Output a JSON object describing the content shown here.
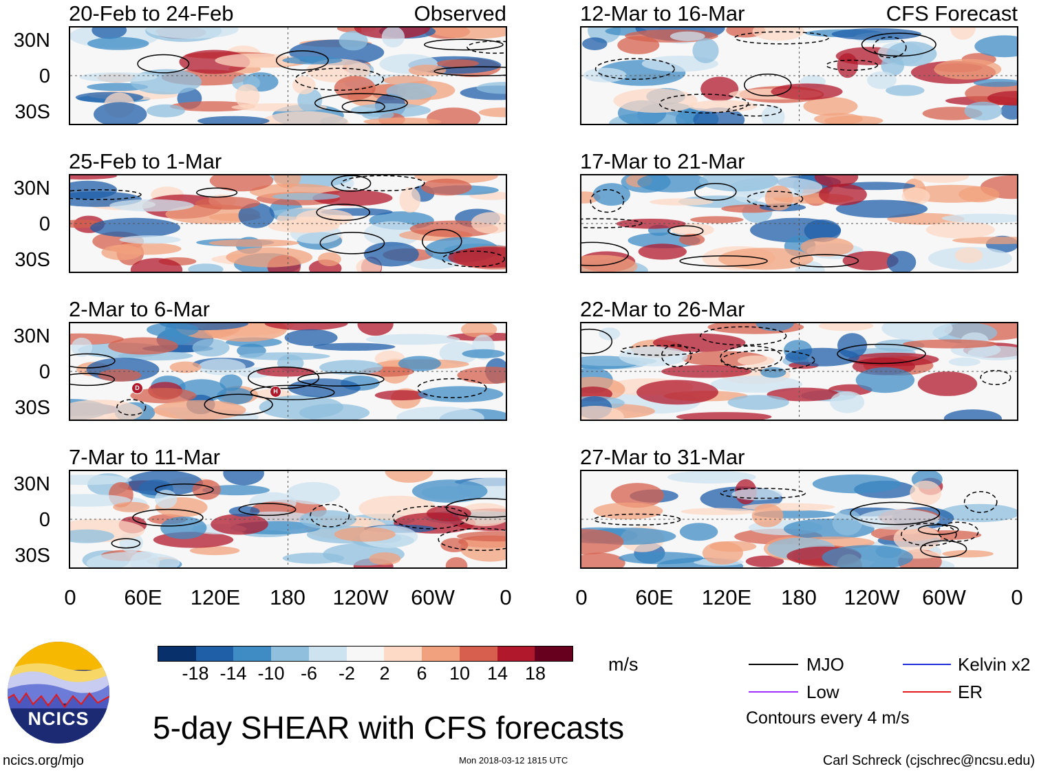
{
  "chart_data": {
    "type": "heatmap",
    "title": "5-day SHEAR with CFS forecasts",
    "observed_label": "Observed",
    "forecast_label": "CFS Forecast",
    "observed_panels": [
      {
        "period": "20-Feb to 24-Feb"
      },
      {
        "period": "25-Feb to 1-Mar"
      },
      {
        "period": "2-Mar to 6-Mar"
      },
      {
        "period": "7-Mar to 11-Mar"
      }
    ],
    "forecast_panels": [
      {
        "period": "12-Mar to 16-Mar"
      },
      {
        "period": "17-Mar to 21-Mar"
      },
      {
        "period": "22-Mar to 26-Mar"
      },
      {
        "period": "27-Mar to 31-Mar"
      }
    ],
    "y_ticks": [
      "30N",
      "0",
      "30S"
    ],
    "x_ticks": [
      "0",
      "60E",
      "120E",
      "180",
      "120W",
      "60W",
      "0"
    ],
    "colorbar": {
      "units": "m/s",
      "labels": [
        "-18",
        "-14",
        "-10",
        "-6",
        "-2",
        "2",
        "6",
        "10",
        "14",
        "18"
      ],
      "colors": [
        "#08306b",
        "#1f5fa8",
        "#3f8cc5",
        "#8fbfdd",
        "#cde3f0",
        "#f7f7f7",
        "#fddac6",
        "#f2a17e",
        "#d6604d",
        "#b2182b",
        "#67001f"
      ]
    },
    "legend": [
      {
        "label": "MJO",
        "color": "#000000"
      },
      {
        "label": "Kelvin x2",
        "color": "#1f2bd6"
      },
      {
        "label": "Low",
        "color": "#9b30ff"
      },
      {
        "label": "ER",
        "color": "#e31a1c"
      }
    ],
    "contour_note": "Contours every 4 m/s"
  },
  "markers": [
    {
      "letter": "D"
    },
    {
      "letter": "H"
    }
  ],
  "footer": {
    "left": "ncics.org/mjo",
    "center": "Mon 2018-03-12 1815 UTC",
    "right": "Carl Schreck (cjschrec@ncsu.edu)",
    "logo_text": "NCICS"
  }
}
